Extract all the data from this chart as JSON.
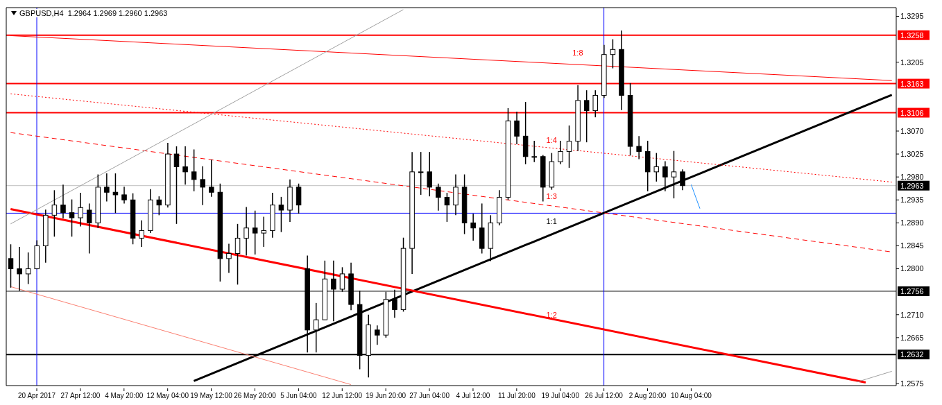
{
  "chart_data": {
    "type": "candlestick",
    "title": "GBPUSD,H4  1.2964 1.2969 1.2960 1.2963",
    "color": "#000000",
    "categories": [
      null,
      null,
      null,
      "20 Apr 2017",
      null,
      null,
      null,
      null,
      "27 Apr 12:00",
      null,
      null,
      null,
      null,
      "4 May 20:00",
      null,
      null,
      null,
      null,
      "12 May 04:00",
      null,
      null,
      null,
      null,
      "19 May 12:00",
      null,
      null,
      null,
      null,
      "26 May 20:00",
      null,
      null,
      null,
      null,
      "5 Jun 04:00",
      null,
      null,
      null,
      null,
      "12 Jun 12:00",
      null,
      null,
      null,
      null,
      "19 Jun 20:00",
      null,
      null,
      null,
      null,
      "27 Jun 04:00",
      null,
      null,
      null,
      null,
      "4 Jul 12:00",
      null,
      null,
      null,
      null,
      "11 Jul 20:00",
      null,
      null,
      null,
      null,
      "19 Jul 04:00",
      null,
      null,
      null,
      null,
      "26 Jul 12:00",
      null,
      null,
      null,
      null,
      "2 Aug 20:00",
      null,
      null,
      null,
      null,
      "10 Aug 04:00",
      null,
      null,
      null,
      null,
      null,
      null,
      null,
      null,
      null,
      null,
      null,
      null,
      null,
      null,
      null,
      null,
      null,
      null,
      null,
      null,
      null,
      null,
      null
    ],
    "ohlc": [
      [
        1.282,
        1.2848,
        1.2763,
        1.28
      ],
      [
        1.28,
        1.2843,
        1.2757,
        1.279
      ],
      [
        1.279,
        1.2832,
        1.277,
        1.28
      ],
      [
        1.28,
        1.2856,
        1.2799,
        1.2845
      ],
      [
        1.2845,
        1.2916,
        1.2812,
        1.2905
      ],
      [
        1.2905,
        1.2954,
        1.2863,
        1.2925
      ],
      [
        1.2925,
        1.2965,
        1.2899,
        1.291
      ],
      [
        1.291,
        1.2936,
        1.2863,
        1.29
      ],
      [
        1.29,
        1.2949,
        1.2883,
        1.292
      ],
      [
        1.2915,
        1.2928,
        1.283,
        1.289
      ],
      [
        1.289,
        1.2985,
        1.288,
        1.296
      ],
      [
        1.296,
        1.2987,
        1.2932,
        1.295
      ],
      [
        1.295,
        1.2987,
        1.2909,
        1.2945
      ],
      [
        1.2945,
        1.2961,
        1.2928,
        1.2935
      ],
      [
        1.2935,
        1.2948,
        1.2848,
        1.286
      ],
      [
        1.286,
        1.2895,
        1.2843,
        1.2875
      ],
      [
        1.2875,
        1.2956,
        1.287,
        1.2935
      ],
      [
        1.2935,
        1.2942,
        1.2905,
        1.2925
      ],
      [
        1.2925,
        1.3047,
        1.292,
        1.3025
      ],
      [
        1.3025,
        1.304,
        1.2888,
        1.3
      ],
      [
        1.3,
        1.304,
        1.2965,
        1.299
      ],
      [
        1.299,
        1.3034,
        1.2952,
        1.2975
      ],
      [
        1.2975,
        1.3001,
        1.2925,
        1.296
      ],
      [
        1.296,
        1.3014,
        1.2941,
        1.295
      ],
      [
        1.295,
        1.2967,
        1.2775,
        1.282
      ],
      [
        1.282,
        1.2849,
        1.2792,
        1.283
      ],
      [
        1.283,
        1.2888,
        1.2769,
        1.286
      ],
      [
        1.286,
        1.2921,
        1.2826,
        1.288
      ],
      [
        1.288,
        1.2914,
        1.2828,
        1.287
      ],
      [
        1.287,
        1.2902,
        1.2843,
        1.2875
      ],
      [
        1.2875,
        1.2949,
        1.2861,
        1.2925
      ],
      [
        1.2925,
        1.2941,
        1.2872,
        1.2915
      ],
      [
        1.2915,
        1.2975,
        1.2892,
        1.296
      ],
      [
        1.296,
        1.2967,
        1.2908,
        1.2925
      ],
      [
        1.28,
        1.2826,
        1.2636,
        1.268
      ],
      [
        1.268,
        1.2733,
        1.2636,
        1.27
      ],
      [
        1.27,
        1.2816,
        1.27,
        1.278
      ],
      [
        1.278,
        1.2816,
        1.2697,
        1.276
      ],
      [
        1.276,
        1.2803,
        1.2755,
        1.279
      ],
      [
        1.279,
        1.2812,
        1.2719,
        1.273
      ],
      [
        1.273,
        1.2757,
        1.2603,
        1.263
      ],
      [
        1.263,
        1.271,
        1.2587,
        1.269
      ],
      [
        1.268,
        1.2689,
        1.2651,
        1.267
      ],
      [
        1.267,
        1.2755,
        1.2665,
        1.274
      ],
      [
        1.274,
        1.2759,
        1.2704,
        1.272
      ],
      [
        1.272,
        1.2861,
        1.2716,
        1.284
      ],
      [
        1.284,
        1.3029,
        1.279,
        1.299
      ],
      [
        1.299,
        1.3029,
        1.2945,
        1.299
      ],
      [
        1.299,
        1.3029,
        1.2942,
        1.296
      ],
      [
        1.296,
        1.2967,
        1.2914,
        1.294
      ],
      [
        1.294,
        1.2949,
        1.2892,
        1.2925
      ],
      [
        1.2925,
        1.2985,
        1.2905,
        1.296
      ],
      [
        1.296,
        1.2985,
        1.2868,
        1.289
      ],
      [
        1.289,
        1.2908,
        1.2855,
        1.288
      ],
      [
        1.288,
        1.2928,
        1.283,
        1.284
      ],
      [
        1.284,
        1.2905,
        1.2815,
        1.289
      ],
      [
        1.289,
        1.2954,
        1.2885,
        1.294
      ],
      [
        1.294,
        1.3115,
        1.2935,
        1.309
      ],
      [
        1.309,
        1.3108,
        1.3044,
        1.306
      ],
      [
        1.306,
        1.3127,
        1.3005,
        1.302
      ],
      [
        1.302,
        1.3051,
        1.3009,
        1.302
      ],
      [
        1.302,
        1.3023,
        1.2932,
        1.296
      ],
      [
        1.296,
        1.3027,
        1.2955,
        1.301
      ],
      [
        1.301,
        1.3051,
        1.3005,
        1.303
      ],
      [
        1.303,
        1.3081,
        1.2998,
        1.305
      ],
      [
        1.305,
        1.316,
        1.3031,
        1.313
      ],
      [
        1.313,
        1.315,
        1.3048,
        1.311
      ],
      [
        1.311,
        1.315,
        1.3097,
        1.314
      ],
      [
        1.314,
        1.3239,
        1.3135,
        1.322
      ],
      [
        1.322,
        1.325,
        1.3193,
        1.323
      ],
      [
        1.323,
        1.3267,
        1.3111,
        1.314
      ],
      [
        1.314,
        1.3164,
        1.3022,
        1.304
      ],
      [
        1.304,
        1.306,
        1.3015,
        1.303
      ],
      [
        1.303,
        1.3051,
        1.2952,
        1.299
      ],
      [
        1.299,
        1.3027,
        1.2971,
        1.3
      ],
      [
        1.3,
        1.3011,
        1.2952,
        1.298
      ],
      [
        1.298,
        1.3031,
        1.2938,
        1.299
      ],
      [
        1.299,
        1.2995,
        1.2954,
        1.2963
      ],
      null,
      null,
      null,
      null,
      null,
      null,
      null,
      null,
      null,
      null,
      null,
      null,
      null,
      null,
      null,
      null,
      null,
      null,
      null,
      null,
      null,
      null,
      null,
      null
    ],
    "series": [
      {
        "type": "line",
        "color": "#000000",
        "values": [
          null,
          null,
          null,
          null,
          null,
          null,
          null,
          null,
          null,
          null,
          null,
          null,
          null,
          null,
          null,
          null,
          null,
          null,
          null,
          null,
          null,
          1.258,
          null,
          null,
          null,
          null,
          null,
          null,
          null,
          null,
          null,
          null,
          null,
          null,
          null,
          null,
          null,
          null,
          null,
          null,
          null,
          null,
          null,
          null,
          null,
          null,
          null,
          null,
          null,
          null,
          null,
          null,
          null,
          null,
          null,
          null,
          null,
          null,
          null,
          null,
          null,
          null,
          null,
          null,
          null,
          null,
          null,
          null,
          null,
          null,
          null,
          null,
          null,
          null,
          null,
          null,
          null,
          null,
          null,
          null,
          null,
          null,
          null,
          null,
          null,
          null,
          null,
          null,
          null,
          null,
          null,
          null,
          null,
          null,
          null,
          null,
          null,
          null,
          null,
          null,
          null,
          1.3141
        ]
      },
      {
        "type": "line",
        "color": "#ff0000",
        "values": [
          1.2917,
          null,
          null,
          null,
          null,
          null,
          null,
          null,
          null,
          null,
          null,
          null,
          null,
          null,
          null,
          null,
          null,
          null,
          null,
          null,
          null,
          null,
          null,
          null,
          null,
          null,
          null,
          null,
          null,
          null,
          null,
          null,
          null,
          null,
          null,
          null,
          null,
          null,
          null,
          null,
          null,
          null,
          null,
          null,
          null,
          null,
          null,
          null,
          null,
          null,
          null,
          null,
          null,
          null,
          null,
          null,
          null,
          null,
          null,
          null,
          null,
          null,
          null,
          null,
          null,
          null,
          null,
          null,
          null,
          null,
          null,
          null,
          null,
          null,
          null,
          null,
          null,
          null,
          null,
          null,
          null,
          null,
          null,
          null,
          null,
          null,
          null,
          null,
          null,
          null,
          null,
          null,
          null,
          null,
          null,
          null,
          null,
          null,
          1.2577,
          null,
          null,
          null
        ]
      },
      {
        "type": "line",
        "color": "#ff0000",
        "values": [
          1.3257,
          null,
          null,
          null,
          null,
          null,
          null,
          null,
          null,
          null,
          null,
          null,
          null,
          null,
          null,
          null,
          null,
          null,
          null,
          null,
          null,
          null,
          null,
          null,
          null,
          null,
          null,
          null,
          null,
          null,
          null,
          null,
          null,
          null,
          null,
          null,
          null,
          null,
          null,
          null,
          null,
          null,
          null,
          null,
          null,
          null,
          null,
          null,
          null,
          null,
          null,
          null,
          null,
          null,
          null,
          null,
          null,
          null,
          null,
          null,
          null,
          null,
          null,
          null,
          null,
          null,
          null,
          null,
          null,
          null,
          null,
          null,
          null,
          null,
          null,
          null,
          null,
          null,
          null,
          null,
          null,
          null,
          null,
          null,
          null,
          null,
          null,
          null,
          null,
          null,
          null,
          null,
          null,
          null,
          null,
          null,
          null,
          null,
          null,
          null,
          null,
          1.3169
        ]
      },
      {
        "type": "line",
        "color": "#ff0000",
        "line_style": "dotted",
        "values": [
          1.3143,
          null,
          null,
          null,
          null,
          null,
          null,
          null,
          null,
          null,
          null,
          null,
          null,
          null,
          null,
          null,
          null,
          null,
          null,
          null,
          null,
          null,
          null,
          null,
          null,
          null,
          null,
          null,
          null,
          null,
          null,
          null,
          null,
          null,
          null,
          null,
          null,
          null,
          null,
          null,
          null,
          null,
          null,
          null,
          null,
          null,
          null,
          null,
          null,
          null,
          null,
          null,
          null,
          null,
          null,
          null,
          null,
          null,
          null,
          null,
          null,
          null,
          null,
          null,
          null,
          null,
          null,
          null,
          null,
          null,
          null,
          null,
          null,
          null,
          null,
          null,
          null,
          null,
          null,
          null,
          null,
          null,
          null,
          null,
          null,
          null,
          null,
          null,
          null,
          null,
          null,
          null,
          null,
          null,
          null,
          null,
          null,
          null,
          null,
          null,
          null,
          1.297
        ]
      },
      {
        "type": "line",
        "color": "#ff0000",
        "line_style": "dashed",
        "values": [
          1.3067,
          null,
          null,
          null,
          null,
          null,
          null,
          null,
          null,
          null,
          null,
          null,
          null,
          null,
          null,
          null,
          null,
          null,
          null,
          null,
          null,
          null,
          null,
          null,
          null,
          null,
          null,
          null,
          null,
          null,
          null,
          null,
          null,
          null,
          null,
          null,
          null,
          null,
          null,
          null,
          null,
          null,
          null,
          null,
          null,
          null,
          null,
          null,
          null,
          null,
          null,
          null,
          null,
          null,
          null,
          null,
          null,
          null,
          null,
          null,
          null,
          null,
          null,
          null,
          null,
          null,
          null,
          null,
          null,
          null,
          null,
          null,
          null,
          null,
          null,
          null,
          null,
          null,
          null,
          null,
          null,
          null,
          null,
          null,
          null,
          null,
          null,
          null,
          null,
          null,
          null,
          null,
          null,
          null,
          null,
          null,
          null,
          null,
          null,
          null,
          null,
          1.2833
        ]
      },
      {
        "type": "line",
        "color": "#fa8072",
        "values": [
          1.2765,
          null,
          null,
          null,
          null,
          null,
          null,
          null,
          null,
          null,
          null,
          null,
          null,
          null,
          null,
          null,
          null,
          null,
          null,
          null,
          null,
          null,
          null,
          null,
          null,
          null,
          null,
          null,
          null,
          null,
          null,
          null,
          null,
          null,
          null,
          null,
          null,
          null,
          null,
          1.2573,
          null,
          null,
          null,
          null,
          null,
          null,
          null,
          null,
          null,
          null,
          null,
          null,
          null,
          null,
          null,
          null,
          null,
          null,
          null,
          null,
          null,
          null,
          null,
          null,
          null,
          null,
          null,
          null,
          null,
          null,
          null,
          null,
          null,
          null,
          null,
          null,
          null,
          null,
          null,
          null,
          null,
          null,
          null,
          null,
          null,
          null,
          null,
          null,
          null,
          null,
          null,
          null,
          null,
          null,
          null,
          null,
          null,
          null,
          null,
          null,
          null,
          null
        ]
      },
      {
        "type": "line",
        "color": "#a0a0a0",
        "values": [
          1.2888,
          null,
          null,
          null,
          null,
          null,
          null,
          null,
          null,
          null,
          null,
          null,
          null,
          null,
          null,
          null,
          null,
          null,
          null,
          null,
          null,
          null,
          null,
          null,
          null,
          null,
          null,
          null,
          null,
          null,
          null,
          null,
          null,
          null,
          null,
          null,
          null,
          null,
          null,
          null,
          null,
          null,
          null,
          null,
          null,
          1.3308,
          null,
          null,
          null,
          null,
          null,
          null,
          null,
          null,
          null,
          null,
          null,
          null,
          null,
          null,
          null,
          null,
          null,
          null,
          null,
          null,
          null,
          null,
          null,
          null,
          null,
          null,
          null,
          null,
          null,
          null,
          null,
          null,
          null,
          null,
          null,
          null,
          null,
          null,
          null,
          null,
          null,
          null,
          null,
          null,
          null,
          null,
          null,
          null,
          null,
          null,
          null,
          null,
          null,
          null,
          null,
          null
        ]
      },
      {
        "type": "line",
        "color": "#a0a0a0",
        "values": [
          null,
          null,
          null,
          null,
          null,
          null,
          null,
          null,
          null,
          null,
          null,
          null,
          null,
          null,
          null,
          null,
          null,
          null,
          null,
          null,
          null,
          null,
          null,
          null,
          null,
          null,
          null,
          null,
          null,
          null,
          null,
          null,
          null,
          null,
          null,
          null,
          null,
          null,
          null,
          null,
          null,
          null,
          null,
          null,
          null,
          null,
          null,
          null,
          null,
          null,
          null,
          null,
          null,
          null,
          null,
          null,
          null,
          null,
          null,
          null,
          null,
          null,
          null,
          null,
          null,
          null,
          null,
          null,
          null,
          null,
          null,
          null,
          null,
          null,
          null,
          null,
          null,
          null,
          null,
          null,
          null,
          null,
          null,
          null,
          null,
          null,
          null,
          null,
          null,
          null,
          null,
          null,
          null,
          null,
          null,
          null,
          null,
          1.2578,
          null,
          null,
          null,
          1.2599
        ]
      },
      {
        "type": "line",
        "color": "#1e90ff",
        "values": [
          null,
          null,
          null,
          null,
          null,
          null,
          null,
          null,
          null,
          null,
          null,
          null,
          null,
          null,
          null,
          null,
          null,
          null,
          null,
          null,
          null,
          null,
          null,
          null,
          null,
          null,
          null,
          null,
          null,
          null,
          null,
          null,
          null,
          null,
          null,
          null,
          null,
          null,
          null,
          null,
          null,
          null,
          null,
          null,
          null,
          null,
          null,
          null,
          null,
          null,
          null,
          null,
          null,
          null,
          null,
          null,
          null,
          null,
          null,
          null,
          null,
          null,
          null,
          null,
          null,
          null,
          null,
          null,
          null,
          null,
          null,
          null,
          null,
          null,
          null,
          null,
          null,
          null,
          1.2965,
          1.2918,
          null,
          null,
          null,
          null,
          null,
          null,
          null,
          null,
          null,
          null,
          null,
          null,
          null,
          null,
          null,
          null,
          null,
          null,
          null,
          null,
          null,
          null
        ]
      }
    ],
    "ylim": [
      1.2571,
      1.3312
    ],
    "yticks": [
      1.2575,
      1.2665,
      {
        "value": 1.271,
        "label": "1.2710"
      },
      {
        "value": 1.28,
        "label": "1.2800"
      },
      1.2845,
      {
        "value": 1.289,
        "label": "1.2890"
      },
      1.2935,
      {
        "value": 1.298,
        "label": "1.2980"
      },
      1.3025,
      {
        "value": 1.307,
        "label": "1.3070"
      },
      1.3205,
      1.3295
    ],
    "ref_lines": [
      {
        "axis": "y",
        "value": 1.3258,
        "label": "1.3258",
        "color": "#ff0000"
      },
      {
        "axis": "y",
        "value": 1.3163,
        "label": "1.3163",
        "color": "#ff0000"
      },
      {
        "axis": "y",
        "value": 1.3106,
        "label": "1.3106",
        "color": "#ff0000"
      },
      {
        "axis": "y",
        "value": 1.2963,
        "label": "1.2963",
        "color": "#c0c0c0"
      },
      {
        "axis": "y",
        "value": 1.2909,
        "label": null,
        "color": "#0000ff"
      },
      {
        "axis": "y",
        "value": 1.2756,
        "label": "1.2756",
        "color": "#000000"
      },
      {
        "axis": "y",
        "value": 1.2632,
        "label": "1.2632",
        "color": "#000000"
      },
      {
        "axis": "x",
        "value": "20 Apr 2017",
        "label": null,
        "color": "#0000ff"
      },
      {
        "axis": "x",
        "value": "26 Jul 12:00",
        "label": null,
        "color": "#0000ff"
      }
    ],
    "annotations": [
      "1:8",
      "1:4",
      "1:3",
      "1:1",
      "1:2"
    ]
  }
}
